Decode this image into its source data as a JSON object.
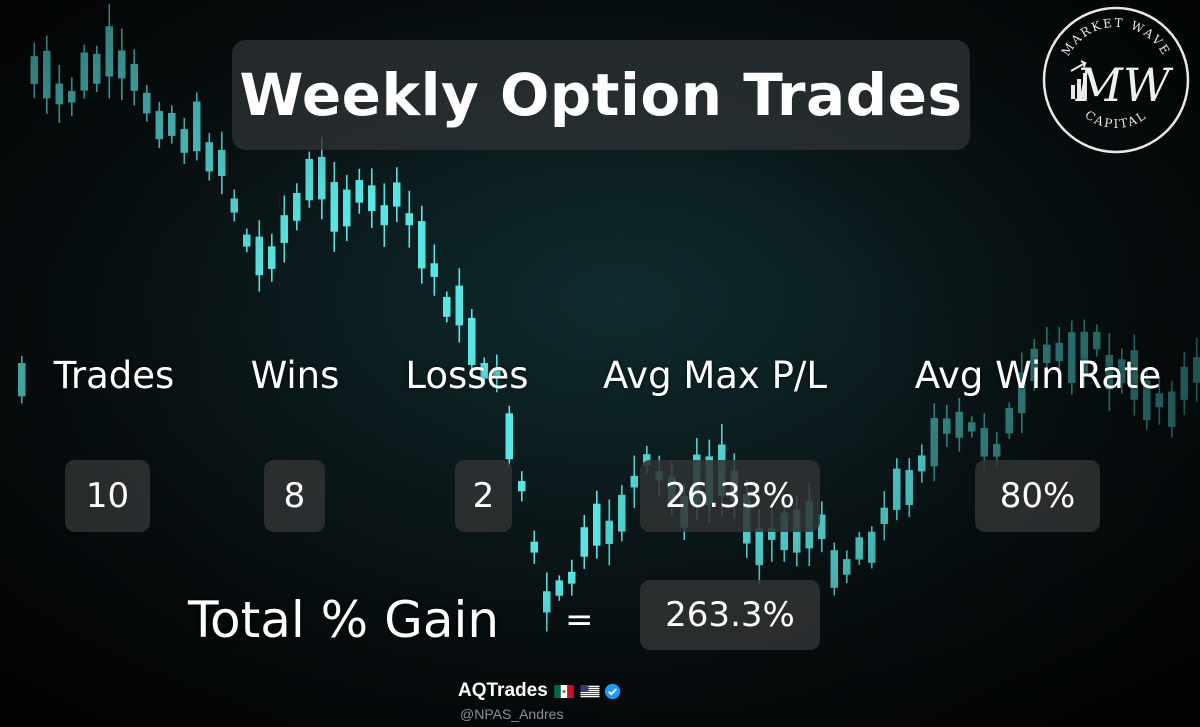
{
  "title": "Weekly Option Trades",
  "stats": [
    {
      "label": "Trades",
      "value": "10"
    },
    {
      "label": "Wins",
      "value": "8"
    },
    {
      "label": "Losses",
      "value": "2"
    },
    {
      "label": "Avg Max P/L",
      "value": "26.33%"
    },
    {
      "label": "Avg Win Rate",
      "value": "80%"
    }
  ],
  "total": {
    "label": "Total % Gain",
    "equals": "=",
    "value": "263.3%"
  },
  "logo": {
    "top_text": "MARKET WAVE",
    "monogram": "MW",
    "bottom_text": "CAPITAL",
    "icon": "market-wave-logo"
  },
  "author": {
    "name": "AQTrades",
    "handle": "@NPAS_Andres",
    "flags": [
      "mexico-flag-icon",
      "usa-flag-icon"
    ],
    "verified_icon": "verified-badge-icon"
  },
  "colors": {
    "accent": "#5ef0ee",
    "panel": "#303234",
    "background": "#050607"
  }
}
